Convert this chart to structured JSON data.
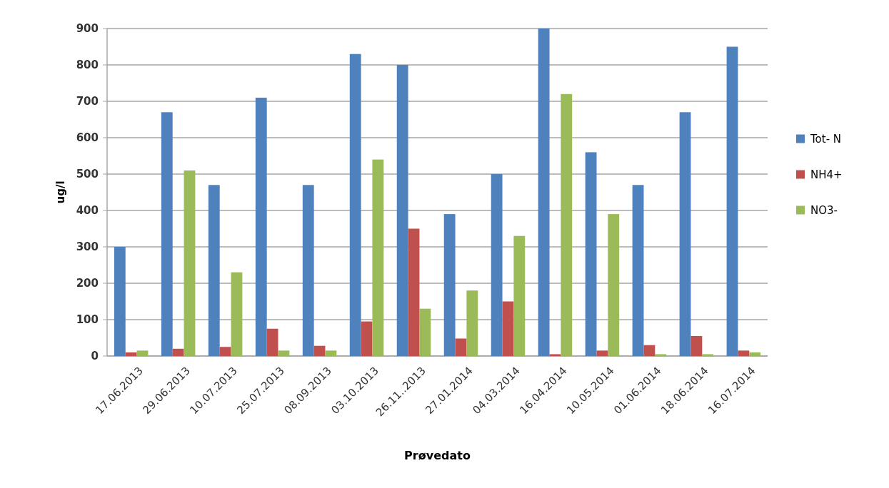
{
  "chart_data": {
    "type": "bar",
    "xlabel": "Prøvedato",
    "ylabel": "ug/l",
    "categories": [
      "17.06.2013",
      "29.06.2013",
      "10.07.2013",
      "25.07.2013",
      "08.09.2013",
      "03.10.2013",
      "26.11..2013",
      "27.01.2014",
      "04.03.2014",
      "16.04.2014",
      "10.05.2014",
      "01.06.2014",
      "18.06.2014",
      "16.07.2014"
    ],
    "series": [
      {
        "name": "Tot- N",
        "color": "#4f81bd",
        "values": [
          300,
          670,
          470,
          710,
          470,
          830,
          800,
          390,
          500,
          900,
          560,
          470,
          670,
          850
        ]
      },
      {
        "name": "NH4+",
        "color": "#c0504d",
        "values": [
          10,
          20,
          25,
          75,
          28,
          95,
          350,
          48,
          150,
          5,
          15,
          30,
          55,
          15
        ]
      },
      {
        "name": "NO3-",
        "color": "#9bbb59",
        "values": [
          15,
          510,
          230,
          15,
          15,
          540,
          130,
          180,
          330,
          720,
          390,
          5,
          5,
          10
        ]
      }
    ],
    "ylim": [
      0,
      900
    ],
    "yticks": [
      0,
      100,
      200,
      300,
      400,
      500,
      600,
      700,
      800,
      900
    ],
    "grid": "y",
    "legend": "right"
  }
}
